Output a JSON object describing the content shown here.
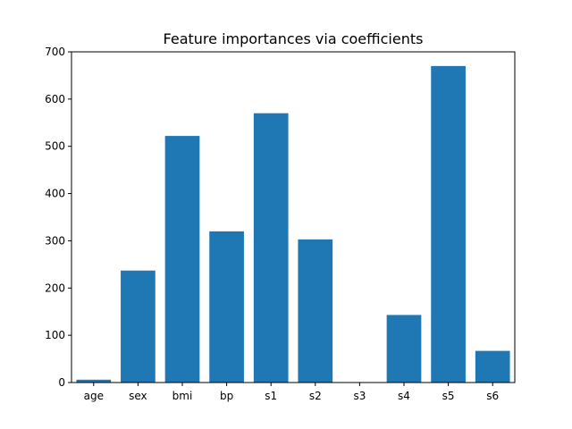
{
  "chart_data": {
    "type": "bar",
    "title": "Feature importances via coefficients",
    "xlabel": "",
    "ylabel": "",
    "categories": [
      "age",
      "sex",
      "bmi",
      "bp",
      "s1",
      "s2",
      "s3",
      "s4",
      "s5",
      "s6"
    ],
    "values": [
      6,
      237,
      522,
      320,
      570,
      303,
      0,
      143,
      670,
      67
    ],
    "ylim": [
      0,
      700
    ],
    "yticks": [
      0,
      100,
      200,
      300,
      400,
      500,
      600,
      700
    ],
    "bar_color": "#1f77b4",
    "grid": false,
    "legend": "none"
  }
}
